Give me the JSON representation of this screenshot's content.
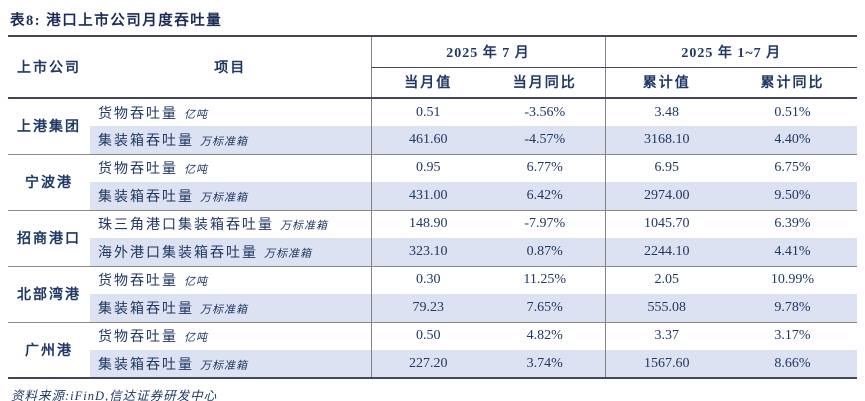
{
  "title": "表8: 港口上市公司月度吞吐量",
  "footer": {
    "source": "资料来源:iFinD,信达证券研发中心"
  },
  "colors": {
    "text_navy": "#1F3864",
    "row_shade": "#DCE2F2",
    "rule_dark": "#45465A",
    "rule_gray": "#8A8A8A"
  },
  "table": {
    "headers": {
      "company": "上市公司",
      "item": "项目",
      "group_month": "2025 年 7 月",
      "group_cumulative": "2025 年 1~7 月",
      "month_value": "当月值",
      "month_yoy": "当月同比",
      "cumulative_value": "累计值",
      "cumulative_yoy": "累计同比"
    },
    "blocks": [
      {
        "company": "上港集团",
        "rows": [
          {
            "item": "货物吞吐量",
            "unit": "亿吨",
            "v1": "0.51",
            "v2": "-3.56%",
            "v3": "3.48",
            "v4": "0.51%"
          },
          {
            "item": "集装箱吞吐量",
            "unit": "万标准箱",
            "v1": "461.60",
            "v2": "-4.57%",
            "v3": "3168.10",
            "v4": "4.40%"
          }
        ]
      },
      {
        "company": "宁波港",
        "rows": [
          {
            "item": "货物吞吐量",
            "unit": "亿吨",
            "v1": "0.95",
            "v2": "6.77%",
            "v3": "6.95",
            "v4": "6.75%"
          },
          {
            "item": "集装箱吞吐量",
            "unit": "万标准箱",
            "v1": "431.00",
            "v2": "6.42%",
            "v3": "2974.00",
            "v4": "9.50%"
          }
        ]
      },
      {
        "company": "招商港口",
        "rows": [
          {
            "item": "珠三角港口集装箱吞吐量",
            "unit": "万标准箱",
            "v1": "148.90",
            "v2": "-7.97%",
            "v3": "1045.70",
            "v4": "6.39%"
          },
          {
            "item": "海外港口集装箱吞吐量",
            "unit": "万标准箱",
            "v1": "323.10",
            "v2": "0.87%",
            "v3": "2244.10",
            "v4": "4.41%"
          }
        ]
      },
      {
        "company": "北部湾港",
        "rows": [
          {
            "item": "货物吞吐量",
            "unit": "亿吨",
            "v1": "0.30",
            "v2": "11.25%",
            "v3": "2.05",
            "v4": "10.99%"
          },
          {
            "item": "集装箱吞吐量",
            "unit": "万标准箱",
            "v1": "79.23",
            "v2": "7.65%",
            "v3": "555.08",
            "v4": "9.78%"
          }
        ]
      },
      {
        "company": "广州港",
        "rows": [
          {
            "item": "货物吞吐量",
            "unit": "亿吨",
            "v1": "0.50",
            "v2": "4.82%",
            "v3": "3.37",
            "v4": "3.17%"
          },
          {
            "item": "集装箱吞吐量",
            "unit": "万标准箱",
            "v1": "227.20",
            "v2": "3.74%",
            "v3": "1567.60",
            "v4": "8.66%"
          }
        ]
      }
    ]
  }
}
